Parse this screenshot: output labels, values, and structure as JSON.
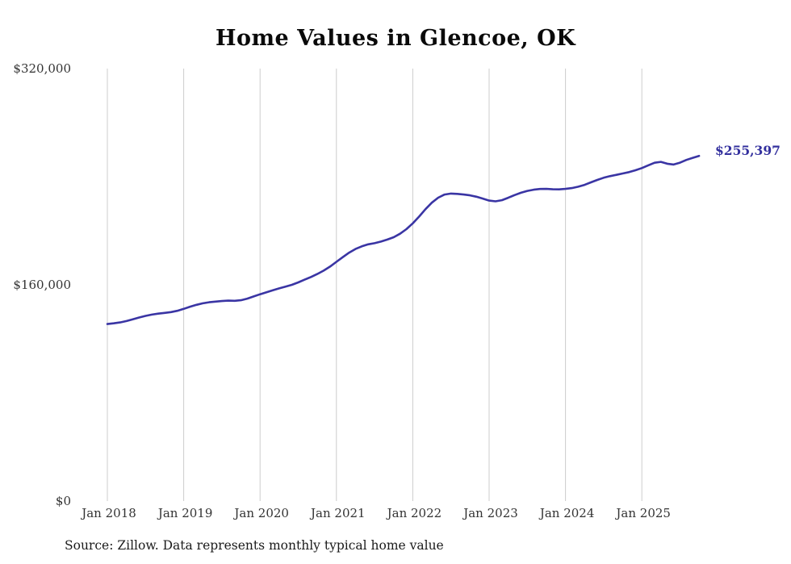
{
  "chart_data": {
    "type": "line",
    "title": "Home Values in Glencoe, OK",
    "series_name": "Typical home value",
    "unit": "USD",
    "start_month": "2018-01",
    "interval": "monthly",
    "source": "Source: Zillow. Data represents monthly typical home value",
    "end_label": "$255,397",
    "end_value": 255397,
    "ylim": [
      0,
      320000
    ],
    "line_color": "#3a35a4",
    "grid_color": "#cccccc",
    "tick_color": "#333333",
    "y_ticks": [
      {
        "value": 0,
        "label": "$0"
      },
      {
        "value": 160000,
        "label": "$160,000"
      },
      {
        "value": 320000,
        "label": "$320,000"
      }
    ],
    "x_ticks": [
      {
        "month_index": 0,
        "label": "Jan 2018"
      },
      {
        "month_index": 12,
        "label": "Jan 2019"
      },
      {
        "month_index": 24,
        "label": "Jan 2020"
      },
      {
        "month_index": 36,
        "label": "Jan 2021"
      },
      {
        "month_index": 48,
        "label": "Jan 2022"
      },
      {
        "month_index": 60,
        "label": "Jan 2023"
      },
      {
        "month_index": 72,
        "label": "Jan 2024"
      },
      {
        "month_index": 84,
        "label": "Jan 2025"
      }
    ],
    "values": [
      131000,
      131500,
      132200,
      133200,
      134500,
      135800,
      137000,
      138000,
      138700,
      139200,
      139800,
      140800,
      142200,
      143800,
      145200,
      146300,
      147100,
      147600,
      148000,
      148300,
      148200,
      148600,
      149800,
      151400,
      153000,
      154500,
      156000,
      157400,
      158600,
      160000,
      161800,
      163800,
      165800,
      168000,
      170500,
      173500,
      177000,
      180500,
      183800,
      186500,
      188500,
      190000,
      190800,
      192000,
      193500,
      195200,
      197800,
      201200,
      205500,
      210500,
      216000,
      220800,
      224500,
      226800,
      227500,
      227300,
      226800,
      226200,
      225200,
      223800,
      222300,
      221800,
      222600,
      224400,
      226400,
      228100,
      229500,
      230400,
      230900,
      231000,
      230700,
      230600,
      231000,
      231600,
      232600,
      234000,
      235800,
      237600,
      239200,
      240400,
      241400,
      242400,
      243400,
      244800,
      246400,
      248400,
      250300,
      251000,
      249600,
      249000,
      250400,
      252400,
      254000,
      255397
    ]
  }
}
